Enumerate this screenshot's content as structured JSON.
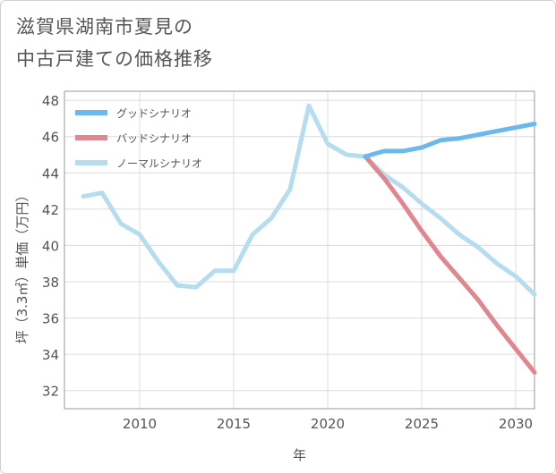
{
  "title_lines": [
    "滋賀県湖南市夏見の",
    "中古戸建ての価格推移"
  ],
  "chart_data": {
    "type": "line",
    "title": "滋賀県湖南市夏見の中古戸建ての価格推移",
    "xlabel": "年",
    "ylabel": "坪（3.3㎡）単価（万円）",
    "xlim": [
      2006,
      2031
    ],
    "ylim": [
      31,
      48.5
    ],
    "xticks": [
      2010,
      2015,
      2020,
      2025,
      2030
    ],
    "yticks": [
      32,
      34,
      36,
      38,
      40,
      42,
      44,
      46,
      48
    ],
    "grid": true,
    "legend_position": "top-left",
    "series": [
      {
        "name": "グッドシナリオ",
        "color": "#6bb8ec",
        "x": [
          2022,
          2023,
          2024,
          2025,
          2026,
          2027,
          2028,
          2029,
          2030,
          2031
        ],
        "y": [
          44.9,
          45.2,
          45.2,
          45.4,
          45.8,
          45.9,
          46.1,
          46.3,
          46.5,
          46.7
        ]
      },
      {
        "name": "バッドシナリオ",
        "color": "#e0868f",
        "x": [
          2022,
          2023,
          2024,
          2025,
          2026,
          2027,
          2028,
          2029,
          2030,
          2031
        ],
        "y": [
          44.9,
          43.7,
          42.3,
          40.8,
          39.4,
          38.2,
          37.0,
          35.6,
          34.3,
          33.0
        ]
      },
      {
        "name": "ノーマルシナリオ",
        "color": "#b6dcef",
        "x": [
          2007,
          2008,
          2009,
          2010,
          2011,
          2012,
          2013,
          2014,
          2015,
          2016,
          2017,
          2018,
          2019,
          2020,
          2021,
          2022,
          2023,
          2024,
          2025,
          2026,
          2027,
          2028,
          2029,
          2030,
          2031
        ],
        "y": [
          42.7,
          42.9,
          41.2,
          40.6,
          39.1,
          37.8,
          37.7,
          38.6,
          38.6,
          40.6,
          41.5,
          43.1,
          47.7,
          45.6,
          45.0,
          44.9,
          43.9,
          43.2,
          42.3,
          41.5,
          40.6,
          39.9,
          39.0,
          38.3,
          37.3
        ]
      }
    ]
  }
}
